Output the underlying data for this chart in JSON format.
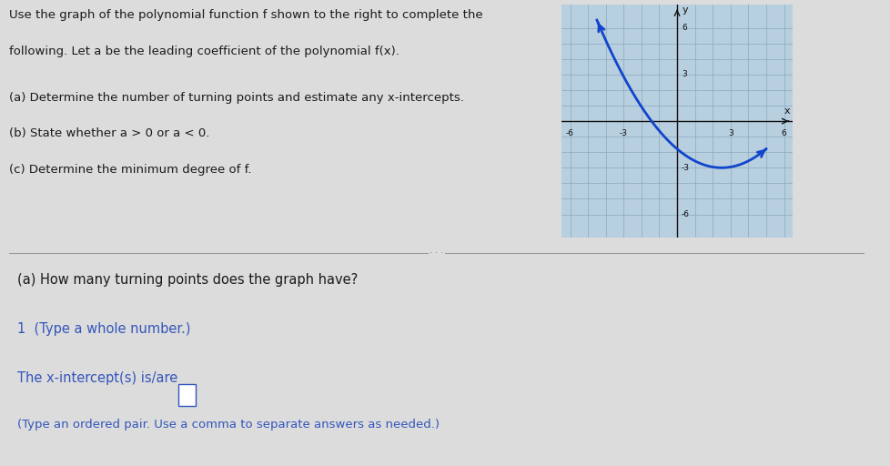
{
  "bg_color": "#dcdcdc",
  "text_color": "#1a1a1a",
  "blue_text_color": "#3355bb",
  "graph_bg": "#b8cfe0",
  "graph_line_color": "#1144cc",
  "graph_axis_color": "#111111",
  "grid_color": "#8aaabb",
  "xlim": [
    -6.5,
    6.5
  ],
  "ylim": [
    -7.5,
    7.5
  ],
  "xticks": [
    -6,
    -3,
    3,
    6
  ],
  "yticks": [
    -6,
    -3,
    3,
    6
  ],
  "title_text1": "Use the graph of the polynomial function f shown to the right to complete the",
  "title_text2": "following. Let a be the leading coefficient of the polynomial f(x).",
  "bullet1": "(a) Determine the number of turning points and estimate any x-intercepts.",
  "bullet2": "(b) State whether a > 0 or a < 0.",
  "bullet3": "(c) Determine the minimum degree of f.",
  "q_a": "(a) How many turning points does the graph have?",
  "ans_a": "1  (Type a whole number.)",
  "q_b": "The x-intercept(s) is/are",
  "q_b2": "(Type an ordered pair. Use a comma to separate answers as needed.)",
  "divider_color": "#999999",
  "a_coef": 0.194,
  "vertex_x": 2.5,
  "vertex_y": -3.0,
  "curve_xstart": -4.5,
  "curve_xend": 5.0
}
